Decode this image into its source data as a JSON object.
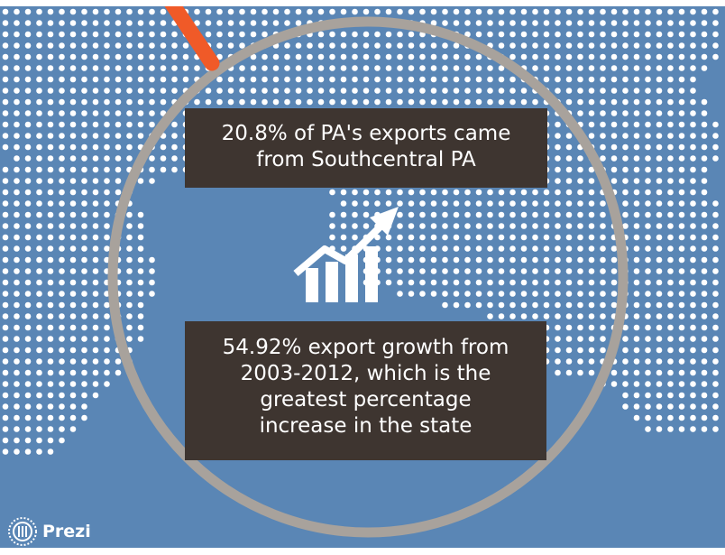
{
  "slide": {
    "background_color": "#5a86b5",
    "dot_color": "#ffffff",
    "ring_color": "#a8a29c",
    "accent_color": "#f05a28",
    "box_color": "#3e3530",
    "icon": "growth-chart-arrow-icon"
  },
  "captions": {
    "top": {
      "lines": [
        "20.8% of PA's exports came",
        "from Southcentral PA"
      ]
    },
    "bottom": {
      "lines": [
        "54.92% export growth from",
        "2003-2012, which is the",
        "greatest percentage",
        "increase in the state"
      ]
    }
  },
  "branding": {
    "logo_text": "Prezi",
    "logo_icon": "prezi-logo-icon"
  }
}
